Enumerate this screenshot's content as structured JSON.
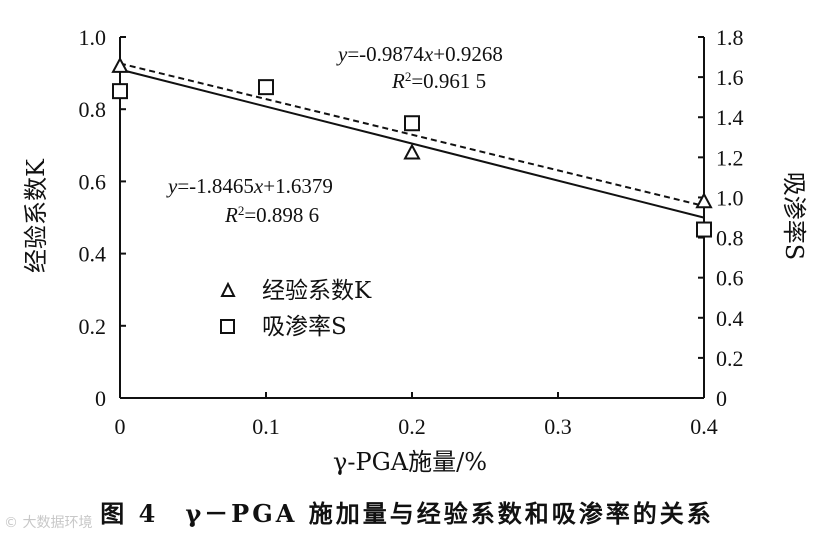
{
  "chart_data": {
    "type": "scatter",
    "xlabel": "γ-PGA施量/%",
    "ylabel_left": "经验系数K",
    "ylabel_right": "吸渗率S",
    "xlim": [
      0,
      0.4
    ],
    "ylim_left": [
      0,
      1.0
    ],
    "ylim_right": [
      0,
      1.8
    ],
    "x_ticks": [
      "0",
      "0.1",
      "0.2",
      "0.3",
      "0.4"
    ],
    "y_left_ticks": [
      "0",
      "0.2",
      "0.4",
      "0.6",
      "0.8",
      "1.0"
    ],
    "y_right_ticks": [
      "0",
      "0.2",
      "0.4",
      "0.6",
      "0.8",
      "1.0",
      "1.2",
      "1.4",
      "1.6",
      "1.8"
    ],
    "series": [
      {
        "name": "经验系数K",
        "axis": "left",
        "marker": "triangle",
        "x": [
          0,
          0.2,
          0.4
        ],
        "y": [
          0.92,
          0.68,
          0.545
        ],
        "fit": {
          "slope": -0.9874,
          "intercept": 0.9268,
          "style": "dashed",
          "equation": "y=-0.9874x+0.9268",
          "r2": "R²=0.961 5"
        }
      },
      {
        "name": "吸渗率S",
        "axis": "right",
        "marker": "square",
        "x": [
          0,
          0.1,
          0.2,
          0.4
        ],
        "y": [
          1.53,
          1.55,
          1.37,
          0.84
        ],
        "fit": {
          "slope": -1.8465,
          "intercept": 1.6379,
          "style": "solid",
          "equation": "y=-1.8465x+1.6379",
          "r2": "R²=0.898 6"
        }
      }
    ],
    "legend": {
      "placement": "lower-left"
    }
  },
  "caption": "图 4　γ－PGA 施加量与经验系数和吸渗率的关系",
  "watermark": "© 大数据环境"
}
